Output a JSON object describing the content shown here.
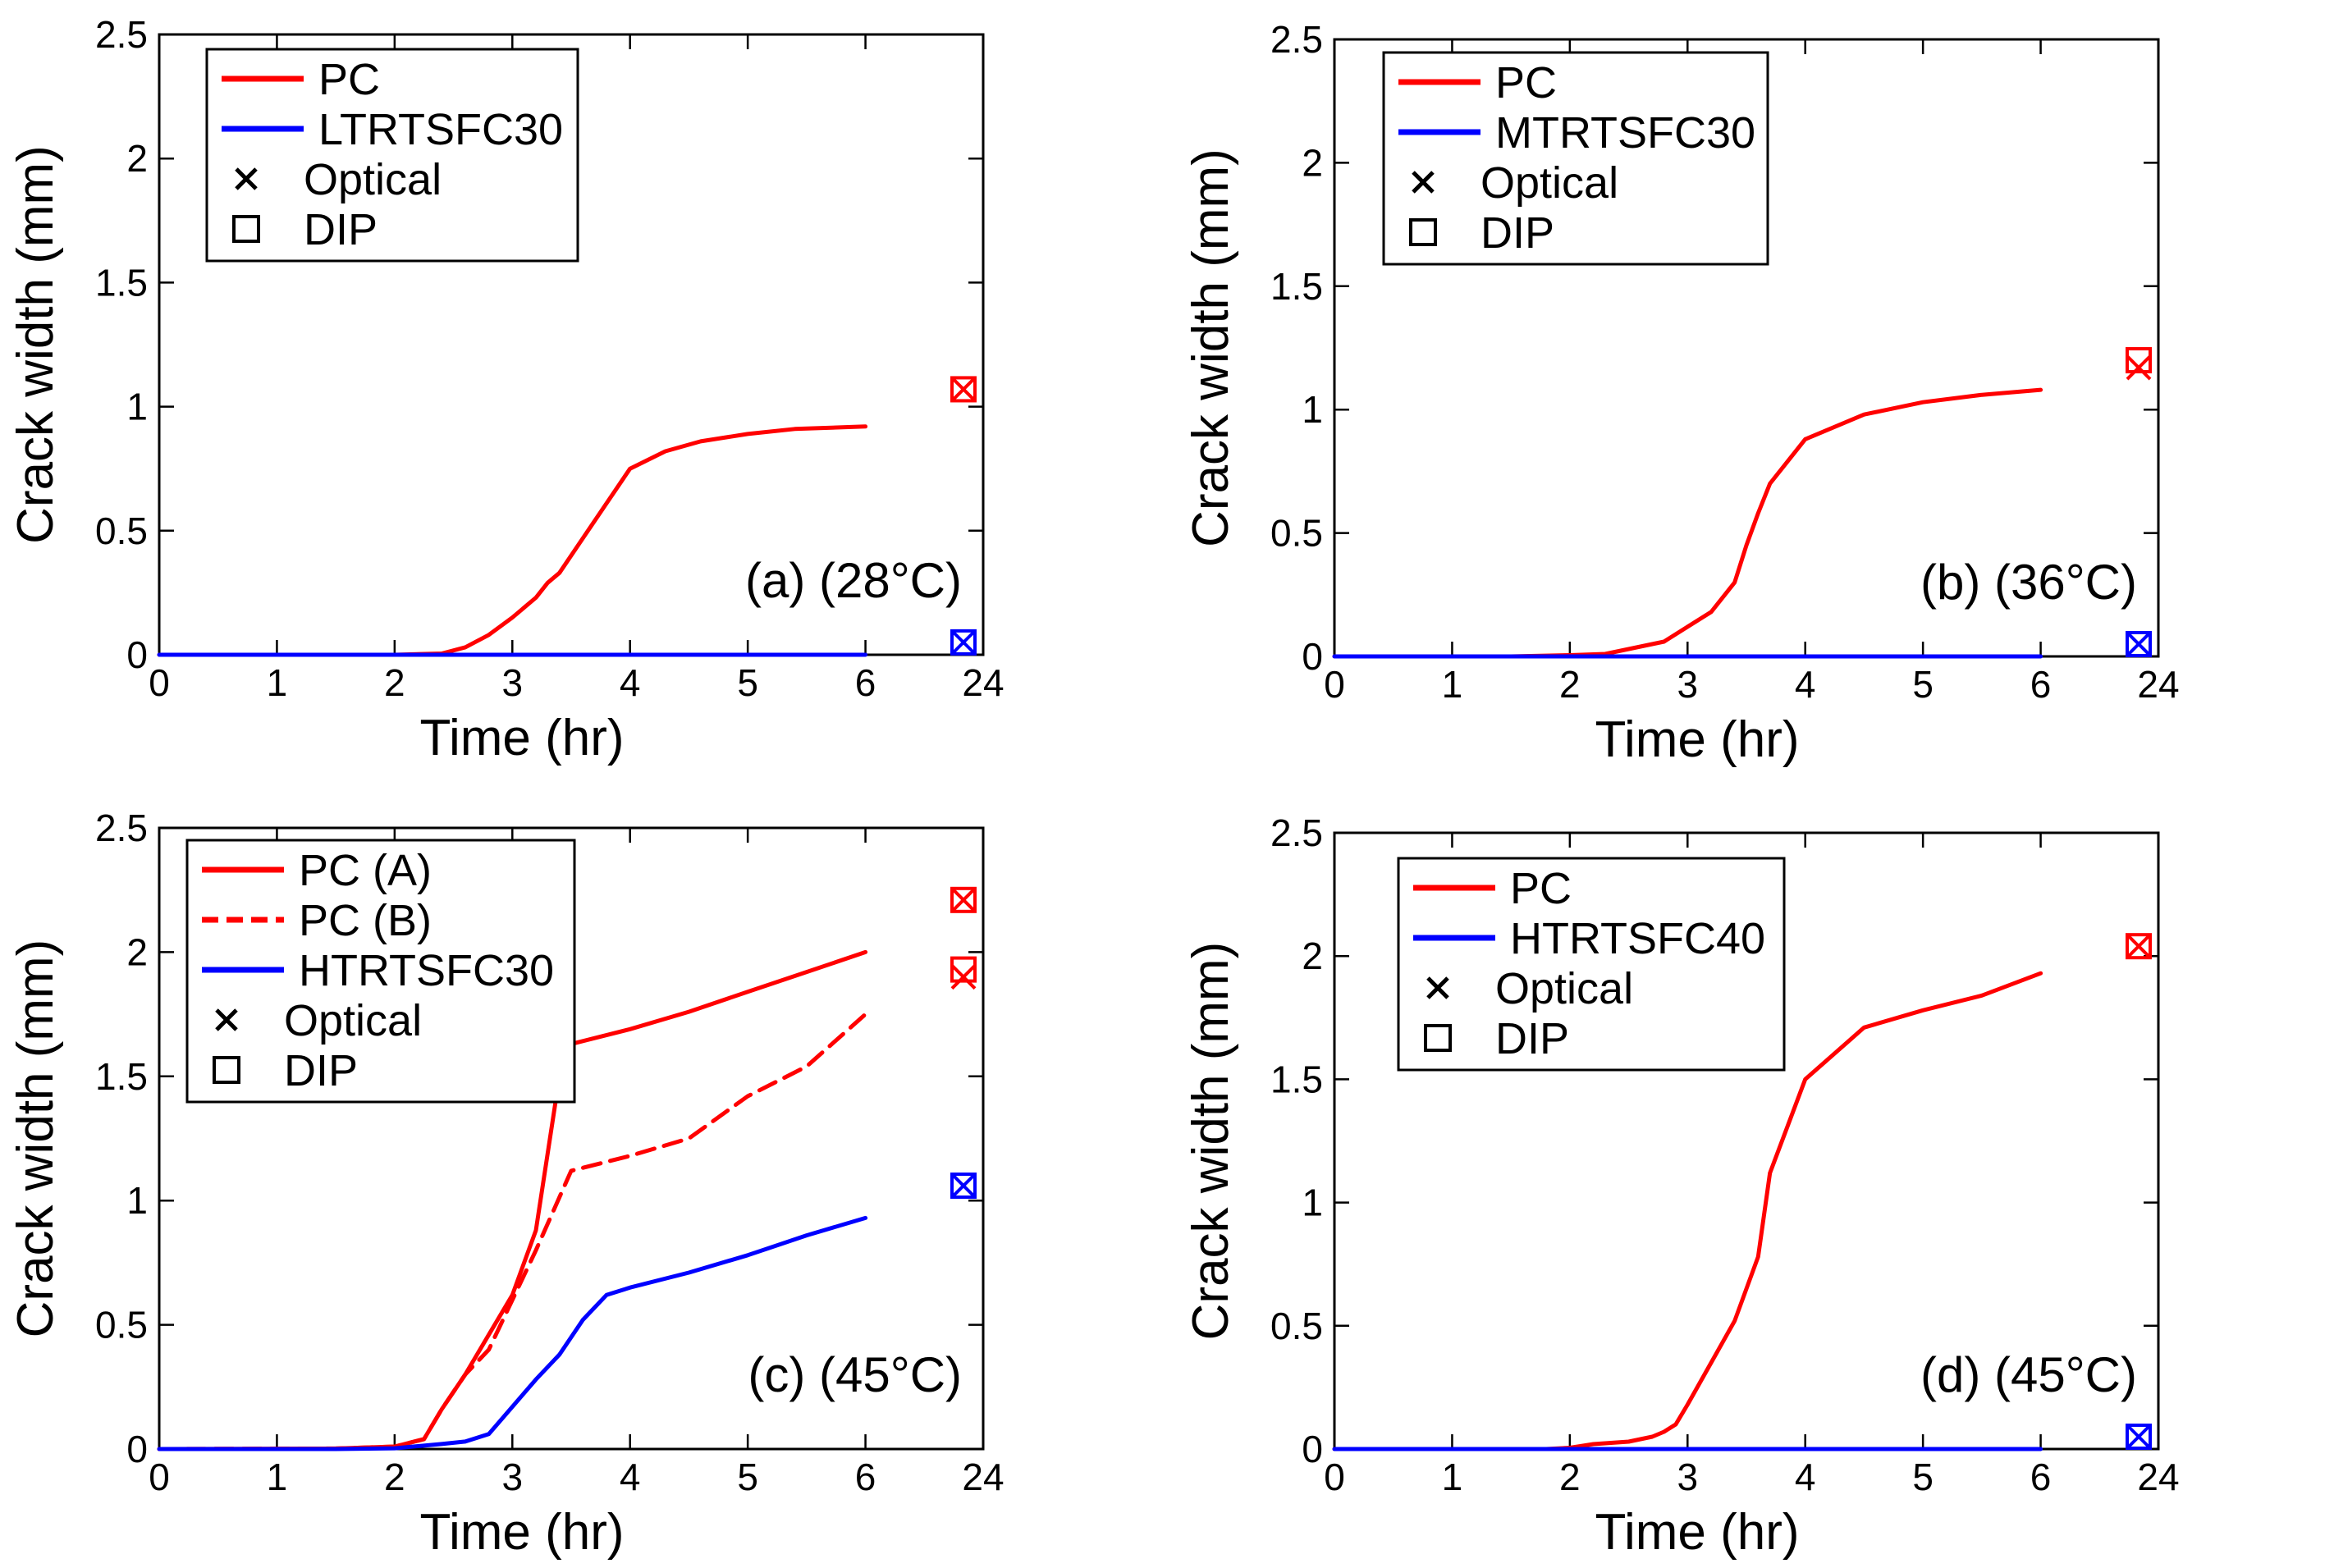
{
  "figure": {
    "x_tick_labels": [
      "0",
      "1",
      "2",
      "3",
      "4",
      "5",
      "6",
      "24"
    ],
    "y_tick_labels": [
      "0",
      "0.5",
      "1",
      "1.5",
      "2",
      "2.5"
    ]
  },
  "colors": {
    "pc": "#ff0000",
    "trtsfc": "#0000ff",
    "axis": "#000000"
  },
  "chart_data": [
    {
      "id": "a",
      "type": "line",
      "panel_label": "(a) (28°C)",
      "xlabel": "Time (hr)",
      "ylabel": "Crack width (mm)",
      "ylim": [
        0,
        2.5
      ],
      "legend": [
        {
          "label": "PC",
          "kind": "line",
          "color": "#ff0000"
        },
        {
          "label": "LTRTSFC30",
          "kind": "line",
          "color": "#0000ff"
        },
        {
          "label": "Optical",
          "kind": "cross"
        },
        {
          "label": "DIP",
          "kind": "square"
        }
      ],
      "series": [
        {
          "name": "PC",
          "color": "#ff0000",
          "dash": false,
          "x": [
            0,
            2,
            2.4,
            2.6,
            2.8,
            3,
            3.2,
            3.3,
            3.4,
            3.6,
            3.8,
            4,
            4.3,
            4.6,
            5,
            5.4,
            6
          ],
          "y": [
            0,
            0,
            0.005,
            0.03,
            0.08,
            0.15,
            0.23,
            0.29,
            0.33,
            0.47,
            0.61,
            0.75,
            0.82,
            0.86,
            0.89,
            0.91,
            0.92
          ]
        },
        {
          "name": "LTRTSFC30",
          "color": "#0000ff",
          "dash": false,
          "x": [
            0,
            6
          ],
          "y": [
            0,
            0
          ]
        }
      ],
      "points_24h": [
        {
          "series": "PC",
          "optical": 1.07,
          "dip": 1.07,
          "color": "#ff0000"
        },
        {
          "series": "LTRTSFC30",
          "optical": 0.05,
          "dip": 0.05,
          "color": "#0000ff"
        }
      ]
    },
    {
      "id": "b",
      "type": "line",
      "panel_label": "(b) (36°C)",
      "xlabel": "Time (hr)",
      "ylabel": "Crack width (mm)",
      "ylim": [
        0,
        2.5
      ],
      "legend": [
        {
          "label": "PC",
          "kind": "line",
          "color": "#ff0000"
        },
        {
          "label": "MTRTSFC30",
          "kind": "line",
          "color": "#0000ff"
        },
        {
          "label": "Optical",
          "kind": "cross"
        },
        {
          "label": "DIP",
          "kind": "square"
        }
      ],
      "series": [
        {
          "name": "PC",
          "color": "#ff0000",
          "dash": false,
          "x": [
            0,
            1.5,
            2,
            2.3,
            2.5,
            2.8,
            3,
            3.2,
            3.4,
            3.5,
            3.6,
            3.7,
            4,
            4.5,
            5,
            5.5,
            6
          ],
          "y": [
            0,
            0,
            0.005,
            0.01,
            0.03,
            0.06,
            0.12,
            0.18,
            0.3,
            0.45,
            0.58,
            0.7,
            0.88,
            0.98,
            1.03,
            1.06,
            1.08
          ]
        },
        {
          "name": "MTRTSFC30",
          "color": "#0000ff",
          "dash": false,
          "x": [
            0,
            6
          ],
          "y": [
            0,
            0
          ]
        }
      ],
      "points_24h": [
        {
          "series": "PC",
          "optical": 1.17,
          "dip": 1.2,
          "color": "#ff0000"
        },
        {
          "series": "MTRTSFC30",
          "optical": 0.05,
          "dip": 0.05,
          "color": "#0000ff"
        }
      ]
    },
    {
      "id": "c",
      "type": "line",
      "panel_label": "(c) (45°C)",
      "xlabel": "Time (hr)",
      "ylabel": "Crack width (mm)",
      "ylim": [
        0,
        2.5
      ],
      "legend": [
        {
          "label": "PC (A)",
          "kind": "line",
          "color": "#ff0000"
        },
        {
          "label": "PC (B)",
          "kind": "dash",
          "color": "#ff0000"
        },
        {
          "label": "HTRTSFC30",
          "kind": "line",
          "color": "#0000ff"
        },
        {
          "label": "Optical",
          "kind": "cross"
        },
        {
          "label": "DIP",
          "kind": "square"
        }
      ],
      "series": [
        {
          "name": "PC (A)",
          "color": "#ff0000",
          "dash": false,
          "x": [
            0,
            1.5,
            2,
            2.25,
            2.4,
            2.6,
            2.8,
            3,
            3.2,
            3.4,
            3.5,
            4,
            4.5,
            5,
            5.5,
            6
          ],
          "y": [
            0,
            0.002,
            0.01,
            0.04,
            0.16,
            0.3,
            0.46,
            0.62,
            0.88,
            1.5,
            1.63,
            1.69,
            1.76,
            1.84,
            1.92,
            2.0
          ]
        },
        {
          "name": "PC (B)",
          "color": "#ff0000",
          "dash": true,
          "x": [
            0,
            1.5,
            2,
            2.25,
            2.4,
            2.6,
            2.8,
            3,
            3.2,
            3.5,
            4,
            4.5,
            5,
            5.5,
            6
          ],
          "y": [
            0,
            0.002,
            0.01,
            0.04,
            0.16,
            0.3,
            0.4,
            0.6,
            0.8,
            1.12,
            1.18,
            1.25,
            1.42,
            1.54,
            1.75
          ]
        },
        {
          "name": "HTRTSFC30",
          "color": "#0000ff",
          "dash": false,
          "x": [
            0,
            1.5,
            2,
            2.4,
            2.6,
            2.8,
            3,
            3.2,
            3.4,
            3.6,
            3.8,
            4,
            4.5,
            5,
            5.5,
            6
          ],
          "y": [
            0,
            0,
            0.003,
            0.02,
            0.03,
            0.06,
            0.17,
            0.28,
            0.38,
            0.52,
            0.62,
            0.65,
            0.71,
            0.78,
            0.86,
            0.93
          ]
        }
      ],
      "points_24h": [
        {
          "series": "PC (A)",
          "optical": 2.21,
          "dip": 2.21,
          "color": "#ff0000"
        },
        {
          "series": "PC (B)",
          "optical": 1.9,
          "dip": 1.93,
          "color": "#ff0000"
        },
        {
          "series": "HTRTSFC30",
          "optical": 1.06,
          "dip": 1.06,
          "color": "#0000ff"
        }
      ]
    },
    {
      "id": "d",
      "type": "line",
      "panel_label": "(d) (45°C)",
      "xlabel": "Time (hr)",
      "ylabel": "Crack width (mm)",
      "ylim": [
        0,
        2.5
      ],
      "legend": [
        {
          "label": "PC",
          "kind": "line",
          "color": "#ff0000"
        },
        {
          "label": "HTRTSFC40",
          "kind": "line",
          "color": "#0000ff"
        },
        {
          "label": "Optical",
          "kind": "cross"
        },
        {
          "label": "DIP",
          "kind": "square"
        }
      ],
      "series": [
        {
          "name": "PC",
          "color": "#ff0000",
          "dash": false,
          "x": [
            0,
            1.8,
            2,
            2.2,
            2.5,
            2.7,
            2.8,
            2.9,
            3,
            3.2,
            3.4,
            3.6,
            3.7,
            4,
            4.5,
            5,
            5.5,
            6
          ],
          "y": [
            0,
            0,
            0.005,
            0.02,
            0.03,
            0.05,
            0.07,
            0.1,
            0.18,
            0.35,
            0.52,
            0.78,
            1.12,
            1.5,
            1.71,
            1.78,
            1.84,
            1.93
          ]
        },
        {
          "name": "HTRTSFC40",
          "color": "#0000ff",
          "dash": false,
          "x": [
            0,
            6
          ],
          "y": [
            0,
            0
          ]
        }
      ],
      "points_24h": [
        {
          "series": "PC",
          "optical": 2.04,
          "dip": 2.04,
          "color": "#ff0000"
        },
        {
          "series": "HTRTSFC40",
          "optical": 0.05,
          "dip": 0.05,
          "color": "#0000ff"
        }
      ]
    }
  ]
}
